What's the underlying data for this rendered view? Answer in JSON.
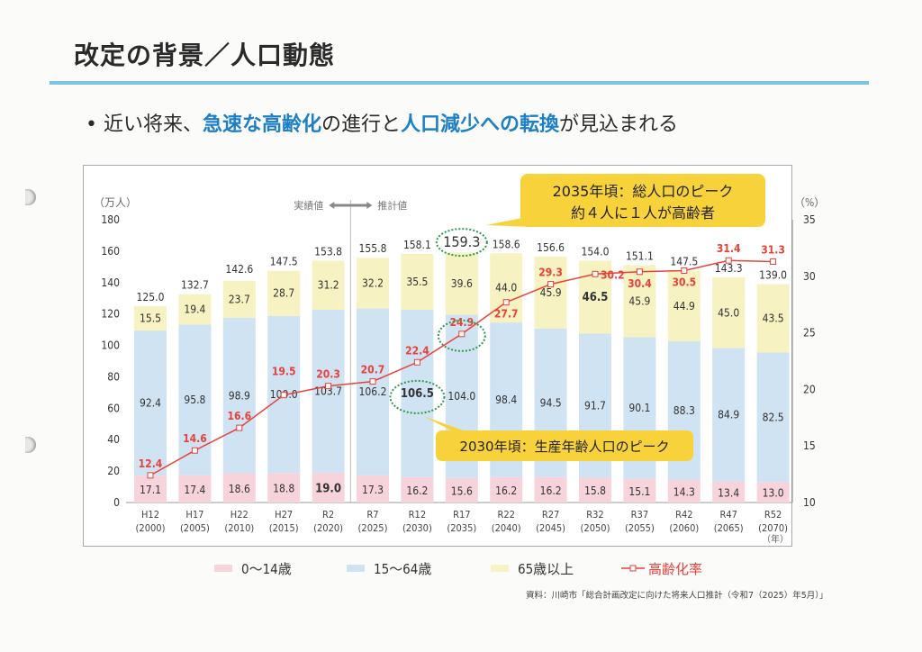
{
  "title": "改定の背景／人口動態",
  "bullet": {
    "marker": "•",
    "parts": [
      {
        "text": "近い将来、",
        "highlight": false
      },
      {
        "text": "急速な高齢化",
        "highlight": true
      },
      {
        "text": "の進行と",
        "highlight": false
      },
      {
        "text": "人口減少への転換",
        "highlight": true
      },
      {
        "text": "が見込まれる",
        "highlight": false
      }
    ]
  },
  "colors": {
    "accent": "#1d7fc4",
    "rule": "#7fc3e0",
    "age0_14": "#f7d3dc",
    "age15_64": "#cfe3f3",
    "age65": "#f6f2c2",
    "rate": "#e8413a",
    "callout": "#f8d23a",
    "circle": "#2e9a4a"
  },
  "chart_data": {
    "type": "bar",
    "stacked": true,
    "categories": [
      [
        "H12",
        "(2000)"
      ],
      [
        "H17",
        "(2005)"
      ],
      [
        "H22",
        "(2010)"
      ],
      [
        "H27",
        "(2015)"
      ],
      [
        "R2",
        "(2020)"
      ],
      [
        "R7",
        "(2025)"
      ],
      [
        "R12",
        "(2030)"
      ],
      [
        "R17",
        "(2035)"
      ],
      [
        "R22",
        "(2040)"
      ],
      [
        "R27",
        "(2045)"
      ],
      [
        "R32",
        "(2050)"
      ],
      [
        "R37",
        "(2055)"
      ],
      [
        "R42",
        "(2060)"
      ],
      [
        "R47",
        "(2065)"
      ],
      [
        "R52",
        "(2070)"
      ]
    ],
    "series": [
      {
        "name": "0～14歳",
        "values": [
          17.1,
          17.4,
          18.6,
          18.8,
          19.0,
          17.3,
          16.2,
          15.6,
          16.2,
          16.2,
          15.8,
          15.1,
          14.3,
          13.4,
          13.0
        ]
      },
      {
        "name": "15～64歳",
        "values": [
          92.4,
          95.8,
          98.9,
          100.0,
          103.7,
          106.2,
          106.5,
          104.0,
          98.4,
          94.5,
          91.7,
          90.1,
          88.3,
          84.9,
          82.5
        ]
      },
      {
        "name": "65歳以上",
        "values": [
          15.5,
          19.4,
          23.7,
          28.7,
          31.2,
          32.2,
          35.5,
          39.6,
          44.0,
          45.9,
          46.5,
          45.9,
          44.9,
          45.0,
          43.5
        ]
      }
    ],
    "totals": [
      125.0,
      132.7,
      142.6,
      147.5,
      153.8,
      155.8,
      158.1,
      159.3,
      158.6,
      156.6,
      154.0,
      151.1,
      147.5,
      143.3,
      139.0
    ],
    "line_series": {
      "name": "高齢化率",
      "type": "line",
      "axis": "right",
      "values": [
        12.4,
        14.6,
        16.6,
        19.5,
        20.3,
        20.7,
        22.4,
        24.9,
        27.7,
        29.3,
        30.2,
        30.4,
        30.5,
        31.4,
        31.3
      ]
    },
    "left_axis": {
      "unit": "（万人）",
      "ylim": [
        0,
        180
      ],
      "ticks": [
        0,
        20,
        40,
        60,
        80,
        100,
        120,
        140,
        160,
        180
      ]
    },
    "right_axis": {
      "unit": "（%）",
      "ylim": [
        10,
        35
      ],
      "ticks": [
        10,
        15,
        20,
        25,
        30,
        35
      ]
    },
    "x_unit": "（年）",
    "divider": {
      "after_category": "R2",
      "left_label": "実績値",
      "right_label": "推計値"
    },
    "callouts": [
      {
        "lines": [
          "2035年頃：総人口のピーク",
          "約４人に１人が高齢者"
        ],
        "target": "R17 total 159.3 / 24.9%"
      },
      {
        "lines": [
          "2030年頃：生産年齢人口のピーク"
        ],
        "target": "R12 15～64歳 106.5"
      }
    ],
    "legend_position": "bottom",
    "grid": false
  },
  "source": "資料：川崎市「総合計画改定に向けた将来人口推計（令和7（2025）年5月）」"
}
